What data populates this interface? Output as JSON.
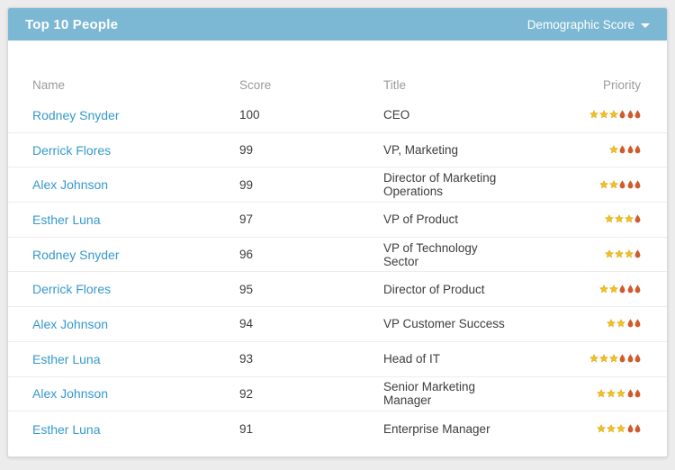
{
  "card": {
    "header": {
      "title": "Top 10 People",
      "dropdown_label": "Demographic Score",
      "dropdown_icon": "chevron-down-icon"
    },
    "table": {
      "columns": [
        "Name",
        "Score",
        "Title",
        "Priority"
      ],
      "rows": [
        {
          "name": "Rodney Snyder",
          "score": "100",
          "title": "CEO",
          "priority": {
            "stars": 3,
            "flames": 3
          }
        },
        {
          "name": "Derrick Flores",
          "score": "99",
          "title": "VP, Marketing",
          "priority": {
            "stars": 1,
            "flames": 3
          }
        },
        {
          "name": "Alex Johnson",
          "score": "99",
          "title": "Director of Marketing Operations",
          "priority": {
            "stars": 2,
            "flames": 3
          }
        },
        {
          "name": "Esther Luna",
          "score": "97",
          "title": "VP of Product",
          "priority": {
            "stars": 3,
            "flames": 1
          }
        },
        {
          "name": "Rodney Snyder",
          "score": "96",
          "title": "VP of Technology Sector",
          "priority": {
            "stars": 3,
            "flames": 1
          }
        },
        {
          "name": "Derrick Flores",
          "score": "95",
          "title": "Director of Product",
          "priority": {
            "stars": 2,
            "flames": 3
          }
        },
        {
          "name": "Alex Johnson",
          "score": "94",
          "title": "VP Customer Success",
          "priority": {
            "stars": 2,
            "flames": 2
          }
        },
        {
          "name": "Esther Luna",
          "score": "93",
          "title": "Head of IT",
          "priority": {
            "stars": 3,
            "flames": 3
          }
        },
        {
          "name": "Alex Johnson",
          "score": "92",
          "title": "Senior Marketing Manager",
          "priority": {
            "stars": 3,
            "flames": 2
          }
        },
        {
          "name": "Esther Luna",
          "score": "91",
          "title": "Enterprise Manager",
          "priority": {
            "stars": 3,
            "flames": 2
          }
        }
      ]
    }
  },
  "colors": {
    "header_bg": "#7cb8d4",
    "link_blue": "#3599cc",
    "star_fill": "#f2c51c",
    "star_stroke": "#dfa61f",
    "flame_fill": "#d05b2c",
    "column_header_text": "#9b9b9b"
  }
}
